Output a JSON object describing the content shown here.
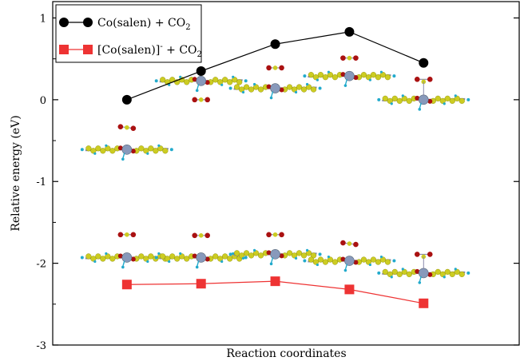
{
  "chart_data": {
    "type": "line",
    "xlabel": "Reaction coordinates",
    "ylabel": "Relative energy (eV)",
    "x": [
      1,
      2,
      3,
      4,
      5
    ],
    "xlim": [
      0.0,
      6.3
    ],
    "ylim": [
      -3,
      1.2
    ],
    "yticks": [
      1,
      0,
      -1,
      -2,
      -3
    ],
    "ytick_labels": [
      "1",
      "0",
      "-1",
      "-2",
      "-3"
    ],
    "grid": false,
    "legend_placement": "top-left",
    "series": [
      {
        "name_main": "Co(salen) + CO",
        "name_sub": "2",
        "color": "#000000",
        "marker": "circle",
        "values": [
          0.0,
          0.35,
          0.68,
          0.83,
          0.45
        ]
      },
      {
        "name_main": "[Co(salen)]",
        "name_sup": "-",
        "name_tail": " + CO",
        "name_sub": "2",
        "color": "#ee3333",
        "marker": "square",
        "values": [
          -2.26,
          -2.25,
          -2.22,
          -2.32,
          -2.49
        ]
      }
    ],
    "molecule_insets": {
      "colors": {
        "carbon": "#cccc22",
        "hydrogen": "#22aacc",
        "oxygen": "#aa1111",
        "cobalt": "#8899bb",
        "bond": "#8888aa"
      },
      "upper": [
        {
          "center_x": 1.0,
          "center_y": -0.61,
          "co2_y": -0.34,
          "co2_tilt": "tilted"
        },
        {
          "center_x": 2.0,
          "center_y": 0.23,
          "co2_y": 0.0,
          "co2_tilt": "flat"
        },
        {
          "center_x": 3.0,
          "center_y": 0.14,
          "co2_y": 0.39,
          "co2_tilt": "flat"
        },
        {
          "center_x": 4.0,
          "center_y": 0.29,
          "co2_y": 0.51,
          "co2_tilt": "flat"
        },
        {
          "center_x": 5.0,
          "center_y": 0.0,
          "co2_y": 0.22,
          "co2_tilt": "bent"
        }
      ],
      "lower": [
        {
          "center_x": 1.0,
          "center_y": -1.93,
          "co2_y": -1.65,
          "co2_tilt": "flat"
        },
        {
          "center_x": 2.0,
          "center_y": -1.93,
          "co2_y": -1.66,
          "co2_tilt": "flat"
        },
        {
          "center_x": 3.0,
          "center_y": -1.89,
          "co2_y": -1.65,
          "co2_tilt": "flat"
        },
        {
          "center_x": 4.0,
          "center_y": -1.97,
          "co2_y": -1.76,
          "co2_tilt": "tilted"
        },
        {
          "center_x": 5.0,
          "center_y": -2.12,
          "co2_y": -1.92,
          "co2_tilt": "bent"
        }
      ]
    }
  }
}
